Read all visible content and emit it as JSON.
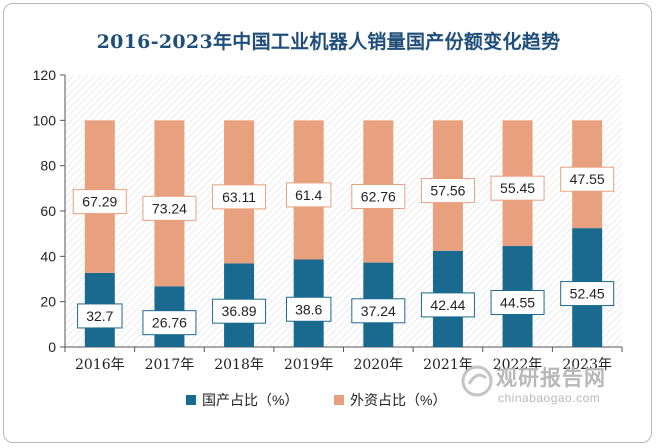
{
  "chart_data": {
    "type": "bar",
    "stacked": true,
    "title": "2016-2023年中国工业机器人销量国产份额变化趋势",
    "categories": [
      "2016年",
      "2017年",
      "2018年",
      "2019年",
      "2020年",
      "2021年",
      "2022年",
      "2023年"
    ],
    "series": [
      {
        "name": "国产占比（%）",
        "values": [
          32.7,
          26.76,
          36.89,
          38.6,
          37.24,
          42.44,
          44.55,
          52.45
        ],
        "color": "#1a6a8f"
      },
      {
        "name": "外资占比（%）",
        "values": [
          67.29,
          73.24,
          63.11,
          61.4,
          62.76,
          57.56,
          55.45,
          47.55
        ],
        "color": "#e8a07e"
      }
    ],
    "ylim": [
      0,
      120
    ],
    "yticks": [
      0,
      20,
      40,
      60,
      80,
      100,
      120
    ],
    "grid": false,
    "legend": "bottom"
  },
  "watermark": {
    "main": "观研报告网",
    "sub": "chinabaogao.com"
  },
  "colors": {
    "title": "#1f4e7a",
    "label_border_domestic": "#1a6a8f",
    "label_border_foreign": "#e8a07e"
  }
}
